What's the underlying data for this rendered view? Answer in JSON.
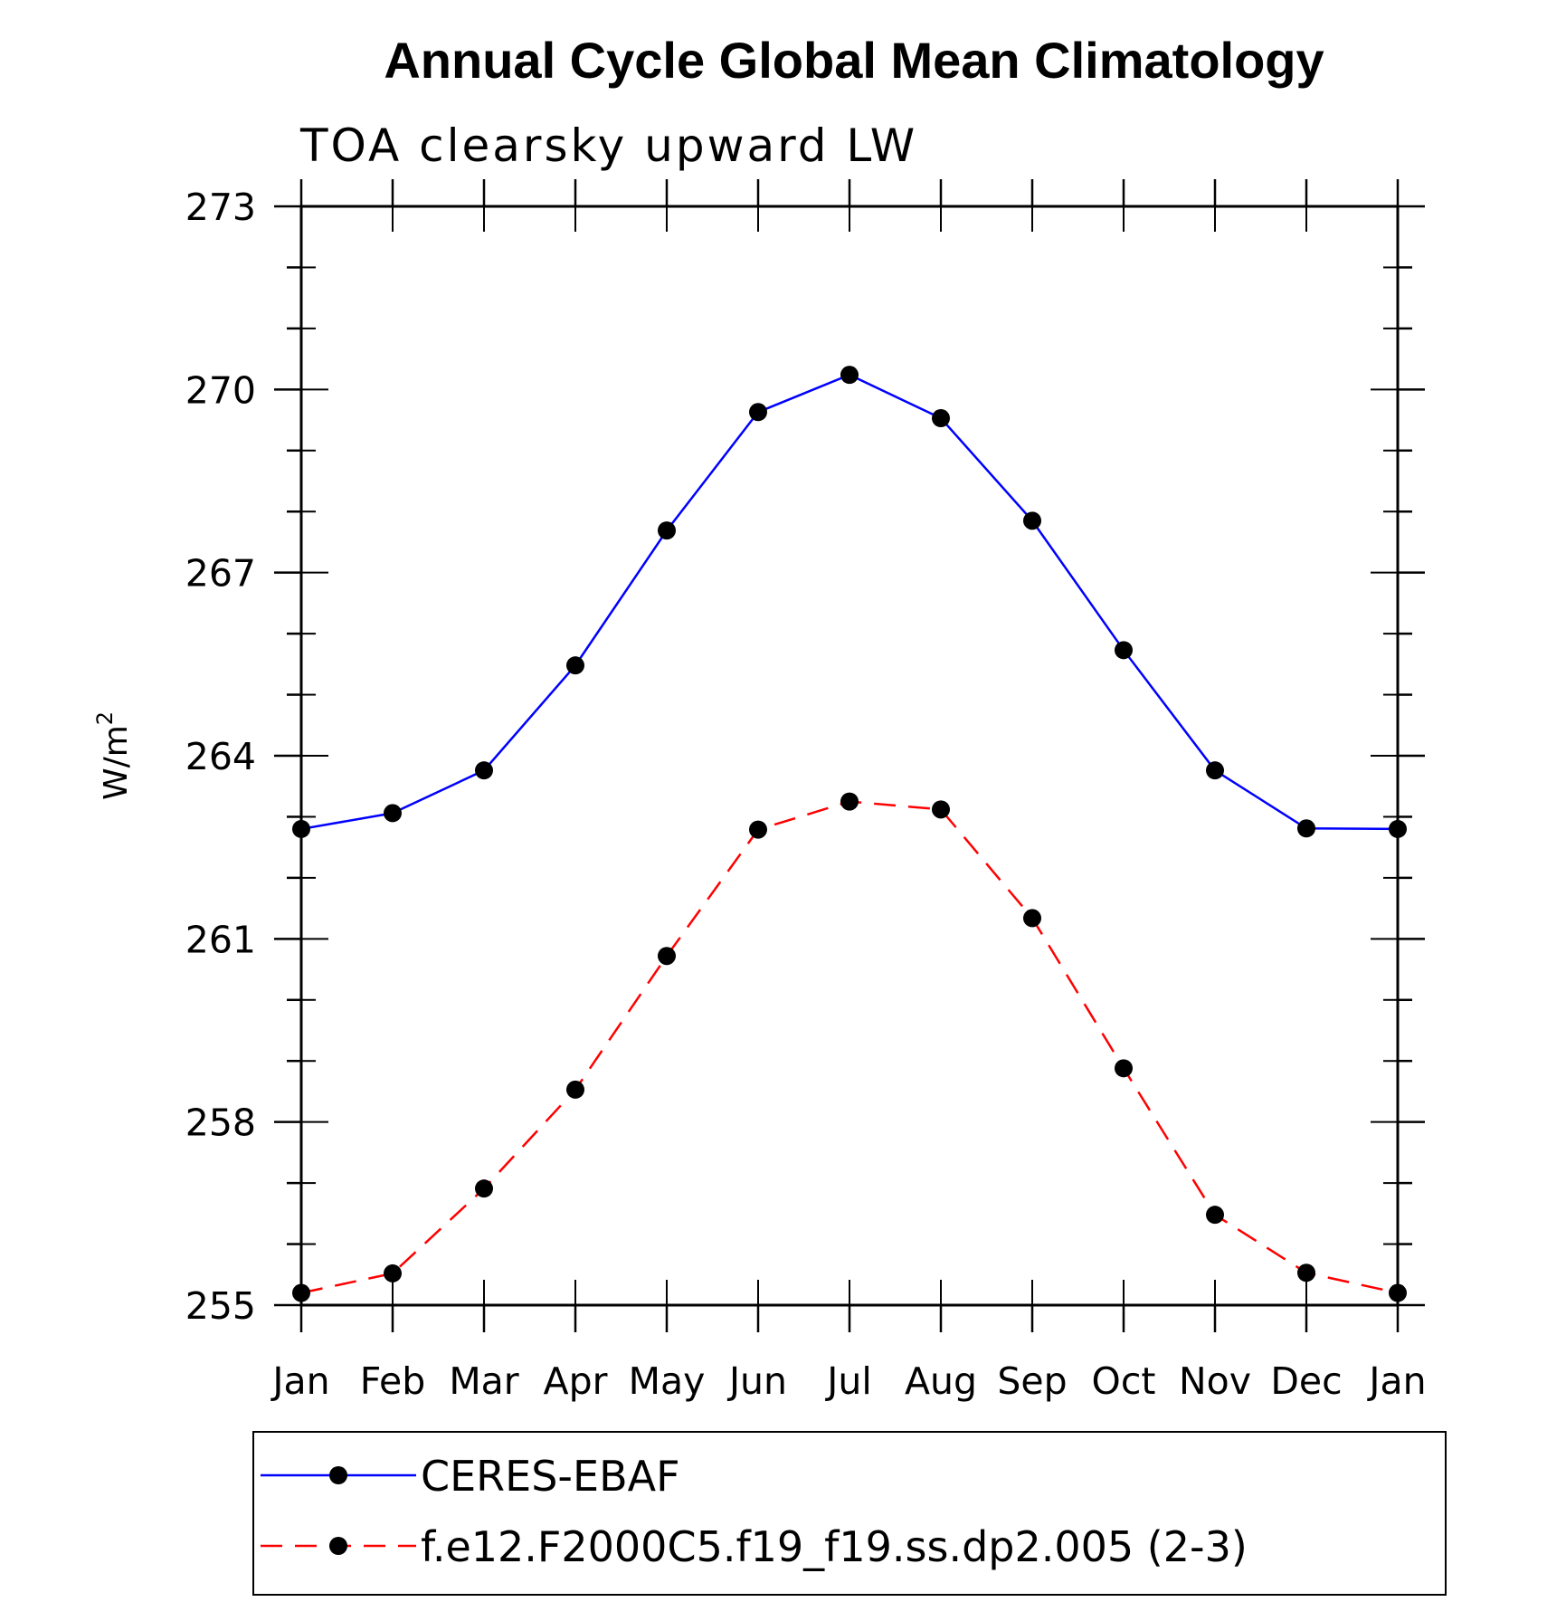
{
  "chart_data": {
    "type": "line",
    "title": "Annual Cycle Global Mean Climatology",
    "subtitle": "TOA clearsky upward LW",
    "xlabel": "",
    "ylabel": "W/m",
    "ylabel_superscript": "2",
    "categories": [
      "Jan",
      "Feb",
      "Mar",
      "Apr",
      "May",
      "Jun",
      "Jul",
      "Aug",
      "Sep",
      "Oct",
      "Nov",
      "Dec",
      "Jan"
    ],
    "ylim": [
      255,
      273
    ],
    "yticks": [
      255,
      258,
      261,
      264,
      267,
      270,
      273
    ],
    "yminor_step": 1,
    "grid": false,
    "legend_position": "bottom",
    "series": [
      {
        "name": "CERES-EBAF",
        "color": "#0000ff",
        "dash": "solid",
        "marker": "filled-circle",
        "values": [
          262.8,
          263.06,
          263.76,
          265.48,
          267.69,
          269.63,
          270.24,
          269.53,
          267.85,
          265.73,
          263.76,
          262.81,
          262.8
        ]
      },
      {
        "name": "f.e12.F2000C5.f19_f19.ss.dp2.005 (2-3)",
        "color": "#ff0000",
        "dash": "dashed",
        "marker": "filled-circle",
        "values": [
          255.2,
          255.52,
          256.91,
          258.53,
          260.72,
          262.79,
          263.25,
          263.12,
          261.34,
          258.88,
          256.48,
          255.53,
          255.2
        ]
      }
    ]
  }
}
